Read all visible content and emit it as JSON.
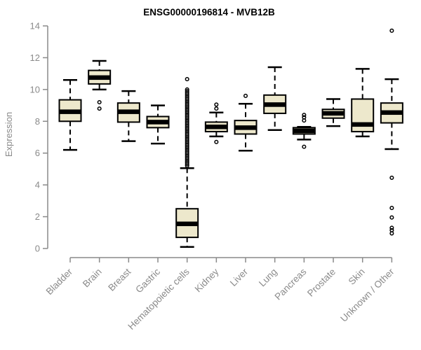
{
  "chart_data": {
    "type": "boxplot",
    "title": "ENSG00000196814 - MVB12B",
    "ylabel": "Expression",
    "xlabel": "",
    "ylim": [
      0,
      14
    ],
    "yticks": [
      0,
      2,
      4,
      6,
      8,
      10,
      12,
      14
    ],
    "grid": false,
    "legend": "none",
    "colors": {
      "box_fill": "#EDE8CC",
      "box_stroke": "#000000",
      "median": "#000000",
      "whisker": "#000000",
      "outlier_stroke": "#000000",
      "axis": "#8A8A8A",
      "title": "#000000",
      "background": "#FFFFFF"
    },
    "categories": [
      "Bladder",
      "Brain",
      "Breast",
      "Gastric",
      "Hematopoietic cells",
      "Kidney",
      "Liver",
      "Lung",
      "Pancreas",
      "Prostate",
      "Skin",
      "Unknown / Other"
    ],
    "series": [
      {
        "category": "Bladder",
        "low": 6.2,
        "q1": 8.0,
        "median": 8.6,
        "q3": 9.35,
        "high": 10.6,
        "outliers": []
      },
      {
        "category": "Brain",
        "low": 10.0,
        "q1": 10.35,
        "median": 10.75,
        "q3": 11.2,
        "high": 11.8,
        "outliers": [
          9.2,
          8.8
        ]
      },
      {
        "category": "Breast",
        "low": 6.75,
        "q1": 7.95,
        "median": 8.6,
        "q3": 9.15,
        "high": 9.9,
        "outliers": []
      },
      {
        "category": "Gastric",
        "low": 6.6,
        "q1": 7.6,
        "median": 7.95,
        "q3": 8.3,
        "high": 9.0,
        "outliers": []
      },
      {
        "category": "Hematopoietic cells",
        "low": 0.1,
        "q1": 0.7,
        "median": 1.55,
        "q3": 2.5,
        "high": 5.05,
        "outliers": [
          10.65,
          5.2,
          5.3,
          5.4,
          5.5,
          5.6,
          5.7,
          5.8,
          5.9,
          6.0,
          6.1,
          6.2,
          6.3,
          6.4,
          6.5,
          6.6,
          6.7,
          6.8,
          6.9,
          7.0,
          7.1,
          7.2,
          7.3,
          7.4,
          7.5,
          7.6,
          7.7,
          7.8,
          7.9,
          8.0,
          8.1,
          8.2,
          8.3,
          8.4,
          8.5,
          8.6,
          8.7,
          8.8,
          8.9,
          9.0,
          9.1,
          9.2,
          9.3,
          9.4,
          9.5,
          9.6,
          9.7,
          9.8,
          9.9,
          10.0
        ]
      },
      {
        "category": "Kidney",
        "low": 7.05,
        "q1": 7.35,
        "median": 7.65,
        "q3": 7.95,
        "high": 8.55,
        "outliers": [
          9.05,
          8.8,
          6.7
        ]
      },
      {
        "category": "Liver",
        "low": 6.15,
        "q1": 7.2,
        "median": 7.6,
        "q3": 8.05,
        "high": 9.1,
        "outliers": [
          9.6
        ]
      },
      {
        "category": "Lung",
        "low": 7.45,
        "q1": 8.5,
        "median": 9.05,
        "q3": 9.65,
        "high": 11.4,
        "outliers": []
      },
      {
        "category": "Pancreas",
        "low": 6.85,
        "q1": 7.2,
        "median": 7.4,
        "q3": 7.6,
        "high": 7.65,
        "outliers": [
          8.4,
          8.25,
          8.05,
          6.4
        ]
      },
      {
        "category": "Prostate",
        "low": 7.7,
        "q1": 8.2,
        "median": 8.5,
        "q3": 8.75,
        "high": 9.4,
        "outliers": []
      },
      {
        "category": "Skin",
        "low": 7.05,
        "q1": 7.35,
        "median": 7.8,
        "q3": 9.4,
        "high": 11.3,
        "outliers": []
      },
      {
        "category": "Unknown / Other",
        "low": 6.25,
        "q1": 7.9,
        "median": 8.55,
        "q3": 9.15,
        "high": 10.65,
        "outliers": [
          13.7,
          4.45,
          2.55,
          1.95,
          1.3,
          1.15,
          0.95
        ]
      }
    ]
  }
}
